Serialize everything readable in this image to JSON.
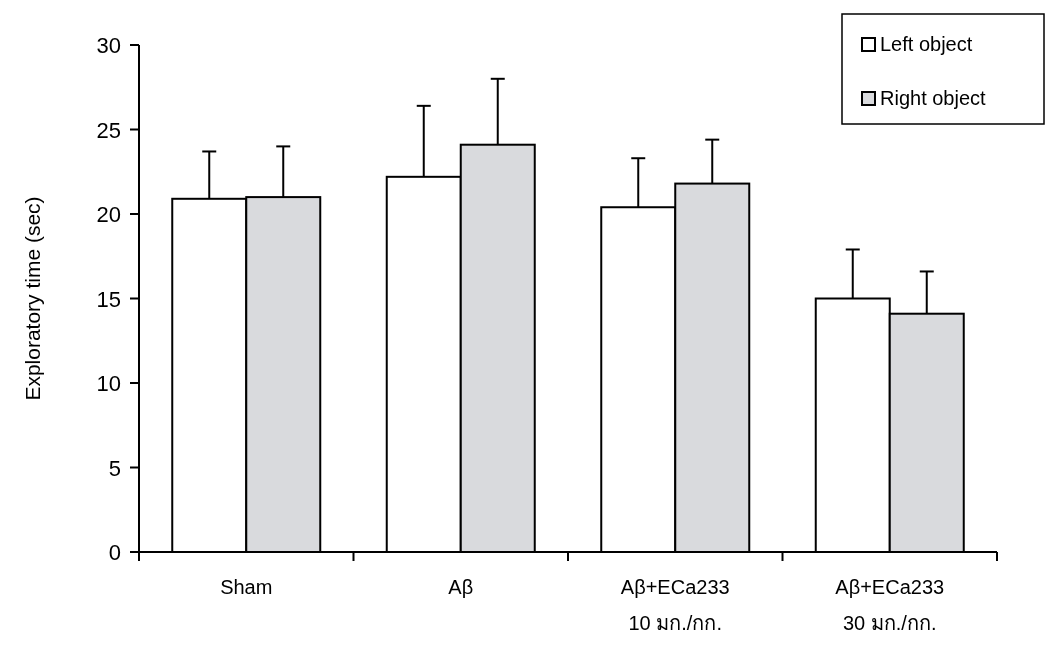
{
  "chart_data": {
    "type": "bar",
    "ylabel": "Exploratory time (sec)",
    "categories": [
      "Sham",
      "Aβ",
      "Aβ+ECa233\n10 มก./กก.",
      "Aβ+ECa233\n30 มก./กก."
    ],
    "series": [
      {
        "name": "Left object",
        "color": "#ffffff",
        "values": [
          20.9,
          22.2,
          20.4,
          15.0
        ],
        "errors": [
          2.8,
          4.2,
          2.9,
          2.9
        ]
      },
      {
        "name": "Right object",
        "color": "#d9dadd",
        "values": [
          21.0,
          24.1,
          21.8,
          14.1
        ],
        "errors": [
          3.0,
          3.9,
          2.6,
          2.5
        ]
      }
    ],
    "ylim": [
      0,
      30
    ],
    "yticks": [
      0,
      5,
      10,
      15,
      20,
      25,
      30
    ],
    "grid": false,
    "legend": "top right"
  }
}
